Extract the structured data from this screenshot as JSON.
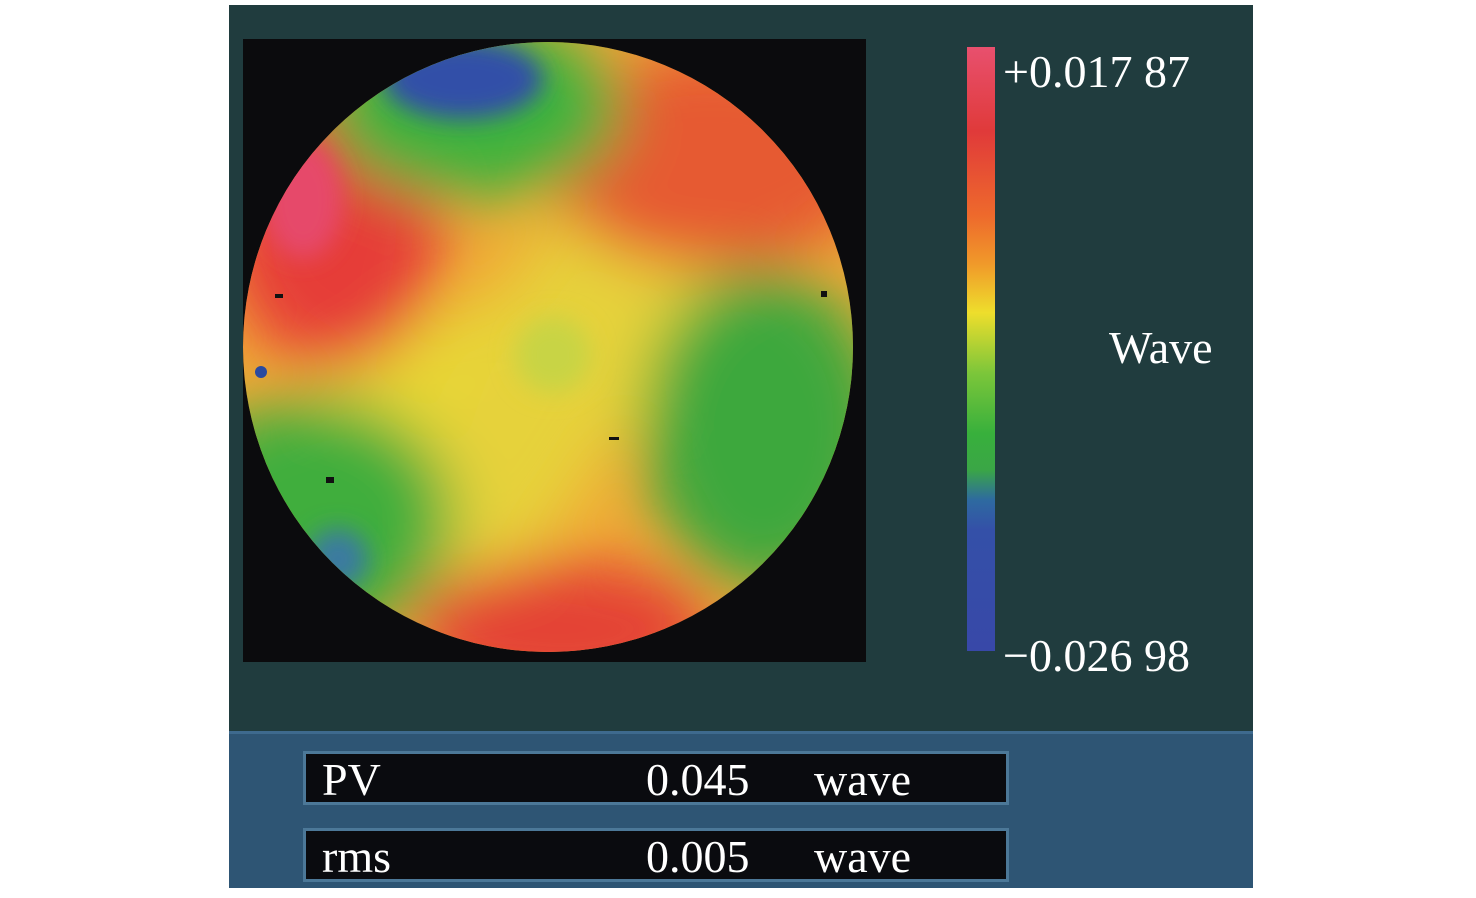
{
  "colorbar": {
    "max_label": "+0.017 87",
    "min_label": "−0.026 98",
    "unit_label": "Wave",
    "max_value": 0.01787,
    "min_value": -0.02698
  },
  "stats": {
    "pv": {
      "name": "PV",
      "value": "0.045",
      "unit": "wave"
    },
    "rms": {
      "name": "rms",
      "value": "0.005",
      "unit": "wave"
    }
  },
  "colors": {
    "app_background": "#203c3e",
    "plot_background": "#0b0b0d",
    "stats_background": "#2e5574",
    "high": "#e03a3a",
    "mid": "#eede2c",
    "low": "#3848a8"
  }
}
